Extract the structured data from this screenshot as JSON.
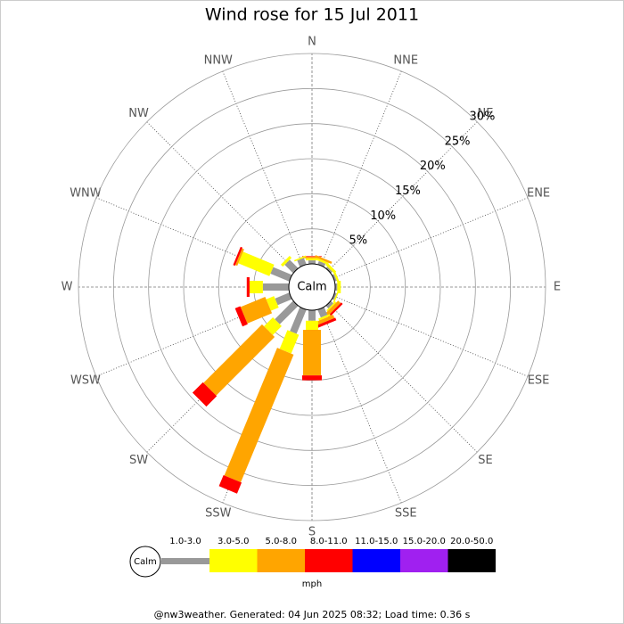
{
  "chart_data": {
    "type": "windrose",
    "title": "Wind rose for 15 Jul 2011",
    "categories": [
      "N",
      "NNE",
      "NE",
      "ENE",
      "E",
      "ESE",
      "SE",
      "SSE",
      "S",
      "SSW",
      "SW",
      "WSW",
      "W",
      "WNW",
      "NW",
      "NNW"
    ],
    "calm_label": "Calm",
    "unit": "mph",
    "ylim": [
      0,
      30
    ],
    "yticks": [
      {
        "value": 5,
        "label": "5%"
      },
      {
        "value": 10,
        "label": "10%"
      },
      {
        "value": 15,
        "label": "15%"
      },
      {
        "value": 20,
        "label": "20%"
      },
      {
        "value": 25,
        "label": "25%"
      },
      {
        "value": 30,
        "label": "30%"
      }
    ],
    "series": [
      {
        "name": "1.0-3.0",
        "color": "#999999",
        "values": [
          0.5,
          0.5,
          0.3,
          0.3,
          0.3,
          0.3,
          0.5,
          1.2,
          1.5,
          3.7,
          3.7,
          2.2,
          3.7,
          2.9,
          1.7,
          1.0
        ]
      },
      {
        "name": "3.0-5.0",
        "color": "#ffff00",
        "values": [
          0.3,
          0.3,
          0.4,
          0.3,
          0.5,
          0.2,
          0.2,
          0.3,
          1.3,
          2.9,
          1.8,
          1.2,
          1.9,
          4.8,
          0.4,
          0.2
        ]
      },
      {
        "name": "5.0-8.0",
        "color": "#ffa500",
        "values": [
          0.2,
          0.3,
          0,
          0,
          0,
          0,
          0.5,
          0.5,
          6.5,
          19.7,
          11.8,
          3.8,
          0,
          0.3,
          0,
          0
        ]
      },
      {
        "name": "8.0-11.0",
        "color": "#ff0000",
        "values": [
          0.1,
          0,
          0,
          0,
          0,
          0,
          0.3,
          0.4,
          0.7,
          1.7,
          2.1,
          0.8,
          0.4,
          0.3,
          0,
          0
        ]
      },
      {
        "name": "11.0-15.0",
        "color": "#0000ff",
        "values": [
          0,
          0,
          0,
          0,
          0,
          0,
          0,
          0,
          0,
          0,
          0,
          0,
          0,
          0,
          0,
          0
        ]
      },
      {
        "name": "15.0-20.0",
        "color": "#a020f0",
        "values": [
          0,
          0,
          0,
          0,
          0,
          0,
          0,
          0,
          0,
          0,
          0,
          0,
          0,
          0,
          0,
          0
        ]
      },
      {
        "name": "20.0-50.0",
        "color": "#000000",
        "values": [
          0,
          0,
          0,
          0,
          0,
          0,
          0,
          0,
          0,
          0,
          0,
          0,
          0,
          0,
          0,
          0
        ]
      }
    ],
    "footer": "@nw3weather. Generated: 04 Jun 2025 08:32; Load time: 0.36 s"
  }
}
